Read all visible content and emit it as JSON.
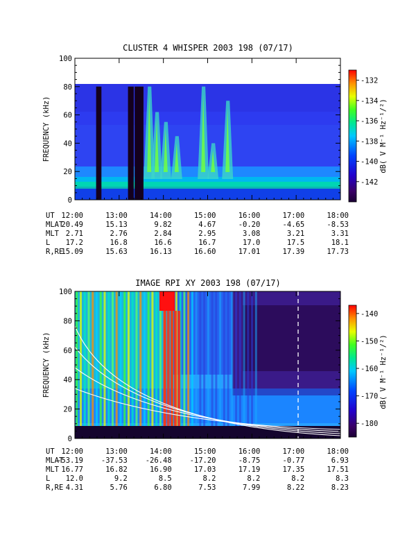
{
  "chart_data": [
    {
      "type": "heatmap",
      "title": "CLUSTER 4 WHISPER 2003 198 (07/17)",
      "ylabel": "FREQUENCY (kHz)",
      "ylim": [
        0,
        100
      ],
      "y_ticks": [
        "0",
        "20",
        "40",
        "60",
        "80",
        "100"
      ],
      "xlim_hours": [
        12,
        18
      ],
      "x_ticks": [
        "12:00",
        "13:00",
        "14:00",
        "15:00",
        "16:00",
        "17:00",
        "18:00"
      ],
      "data_top_khz": 80,
      "colorbar": {
        "label": "dB( V M⁻¹ Hz⁻¹/²)",
        "range": [
          -144,
          -131
        ],
        "ticks": [
          "-132",
          "-134",
          "-136",
          "-138",
          "-140",
          "-142"
        ]
      },
      "data_gaps_hours": [
        [
          12.48,
          12.6
        ],
        [
          13.2,
          13.33
        ],
        [
          13.35,
          13.55
        ]
      ],
      "emission_bursts": [
        {
          "hour": 13.68,
          "top_khz": 80
        },
        {
          "hour": 13.85,
          "top_khz": 62
        },
        {
          "hour": 14.05,
          "top_khz": 55
        },
        {
          "hour": 14.3,
          "top_khz": 45
        },
        {
          "hour": 14.9,
          "top_khz": 80
        },
        {
          "hour": 15.12,
          "top_khz": 40
        },
        {
          "hour": 15.45,
          "top_khz": 70
        }
      ],
      "orbit_table": {
        "row_labels": [
          "UT",
          "MLAT",
          "MLT",
          "L",
          "R,RE"
        ],
        "rows": [
          [
            "12:00",
            "13:00",
            "14:00",
            "15:00",
            "16:00",
            "17:00",
            "18:00"
          ],
          [
            "20.49",
            "15.13",
            "9.82",
            "4.67",
            "-0.20",
            "-4.65",
            "-8.53"
          ],
          [
            "2.71",
            "2.76",
            "2.84",
            "2.95",
            "3.08",
            "3.21",
            "3.31"
          ],
          [
            "17.2",
            "16.8",
            "16.6",
            "16.7",
            "17.0",
            "17.5",
            "18.1"
          ],
          [
            "15.09",
            "15.63",
            "16.13",
            "16.60",
            "17.01",
            "17.39",
            "17.73"
          ]
        ]
      }
    },
    {
      "type": "heatmap",
      "title": "IMAGE RPI XY 2003 198 (07/17)",
      "ylabel": "FREQUENCY (kHz)",
      "ylim": [
        0,
        100
      ],
      "y_ticks": [
        "0",
        "20",
        "40",
        "60",
        "80",
        "100"
      ],
      "xlim_hours": [
        12,
        18
      ],
      "x_ticks": [
        "12:00",
        "13:00",
        "14:00",
        "15:00",
        "16:00",
        "17:00",
        "18:00"
      ],
      "colorbar": {
        "label": "dB( V M⁻¹ Hz⁻¹/²)",
        "range": [
          -185,
          -137
        ],
        "ticks": [
          "-140",
          "-150",
          "-160",
          "-170",
          "-180"
        ]
      },
      "intense_band_hours": [
        14.0,
        14.4
      ],
      "orbit_table": {
        "row_labels": [
          "UT",
          "MLAT",
          "MLT",
          "L",
          "R,RE"
        ],
        "rows": [
          [
            "12:00",
            "13:00",
            "14:00",
            "15:00",
            "16:00",
            "17:00",
            "18:00"
          ],
          [
            "-53.19",
            "-37.53",
            "-26.48",
            "-17.20",
            "-8.75",
            "-0.77",
            "6.93"
          ],
          [
            "16.77",
            "16.82",
            "16.90",
            "17.03",
            "17.19",
            "17.35",
            "17.51"
          ],
          [
            "12.0",
            "9.2",
            "8.5",
            "8.2",
            "8.2",
            "8.2",
            "8.3"
          ],
          [
            "4.31",
            "5.76",
            "6.80",
            "7.53",
            "7.99",
            "8.22",
            "8.23"
          ]
        ]
      }
    }
  ]
}
